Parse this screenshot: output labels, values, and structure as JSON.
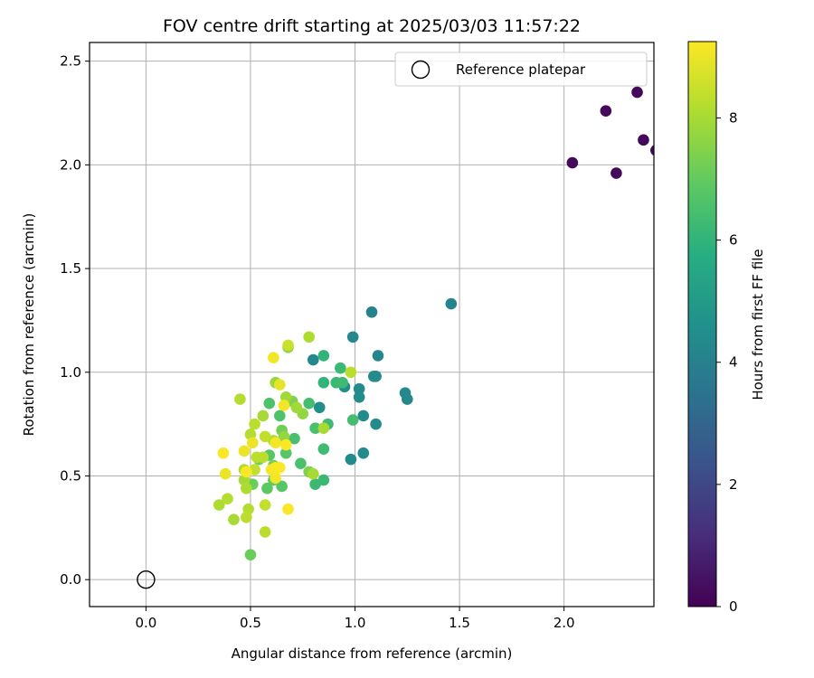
{
  "chart_data": {
    "type": "scatter",
    "title": "FOV centre drift starting at 2025/03/03 11:57:22",
    "xlabel": "Angular distance from reference (arcmin)",
    "ylabel": "Rotation from reference (arcmin)",
    "xlim": [
      -0.27,
      2.43
    ],
    "ylim": [
      -0.13,
      2.59
    ],
    "xticks": [
      "0.0",
      "0.5",
      "1.0",
      "1.5",
      "2.0"
    ],
    "yticks": [
      "0.0",
      "0.5",
      "1.0",
      "1.5",
      "2.0",
      "2.5"
    ],
    "grid": true,
    "legend": {
      "position": "top-right",
      "entries": [
        "Reference platepar"
      ]
    },
    "reference_point": {
      "x": 0.0,
      "y": 0.0
    },
    "colorbar": {
      "label": "Hours from first FF file",
      "colormap": "viridis",
      "range": [
        0,
        9.25
      ],
      "ticks": [
        "0",
        "2",
        "4",
        "6",
        "8"
      ]
    },
    "points": [
      {
        "x": 2.04,
        "y": 2.01,
        "c": 0.2
      },
      {
        "x": 2.2,
        "y": 2.26,
        "c": 0.2
      },
      {
        "x": 2.35,
        "y": 2.35,
        "c": 0.2
      },
      {
        "x": 2.25,
        "y": 1.96,
        "c": 0.2
      },
      {
        "x": 2.38,
        "y": 2.12,
        "c": 0.2
      },
      {
        "x": 2.44,
        "y": 2.07,
        "c": 0.2
      },
      {
        "x": 1.46,
        "y": 1.33,
        "c": 4.1
      },
      {
        "x": 1.08,
        "y": 1.29,
        "c": 4.1
      },
      {
        "x": 0.99,
        "y": 1.17,
        "c": 4.3
      },
      {
        "x": 1.11,
        "y": 1.08,
        "c": 4.2
      },
      {
        "x": 0.8,
        "y": 1.06,
        "c": 4.3
      },
      {
        "x": 1.09,
        "y": 0.98,
        "c": 4.3
      },
      {
        "x": 1.1,
        "y": 0.98,
        "c": 4.4
      },
      {
        "x": 0.95,
        "y": 0.93,
        "c": 4.5
      },
      {
        "x": 1.02,
        "y": 0.92,
        "c": 4.4
      },
      {
        "x": 1.24,
        "y": 0.9,
        "c": 4.3
      },
      {
        "x": 1.25,
        "y": 0.87,
        "c": 4.3
      },
      {
        "x": 1.02,
        "y": 0.88,
        "c": 4.5
      },
      {
        "x": 0.83,
        "y": 0.83,
        "c": 4.5
      },
      {
        "x": 1.04,
        "y": 0.79,
        "c": 4.4
      },
      {
        "x": 1.1,
        "y": 0.75,
        "c": 4.4
      },
      {
        "x": 1.04,
        "y": 0.61,
        "c": 4.4
      },
      {
        "x": 0.98,
        "y": 0.58,
        "c": 4.4
      },
      {
        "x": 0.85,
        "y": 1.08,
        "c": 6.0
      },
      {
        "x": 0.93,
        "y": 1.02,
        "c": 6.2
      },
      {
        "x": 0.85,
        "y": 0.95,
        "c": 6.0
      },
      {
        "x": 0.91,
        "y": 0.95,
        "c": 6.2
      },
      {
        "x": 0.94,
        "y": 0.95,
        "c": 6.3
      },
      {
        "x": 0.78,
        "y": 0.85,
        "c": 6.4
      },
      {
        "x": 0.99,
        "y": 0.77,
        "c": 6.4
      },
      {
        "x": 0.81,
        "y": 0.73,
        "c": 6.5
      },
      {
        "x": 0.87,
        "y": 0.75,
        "c": 6.3
      },
      {
        "x": 0.85,
        "y": 0.63,
        "c": 6.3
      },
      {
        "x": 0.74,
        "y": 0.56,
        "c": 6.5
      },
      {
        "x": 0.81,
        "y": 0.46,
        "c": 6.2
      },
      {
        "x": 0.85,
        "y": 0.48,
        "c": 6.2
      },
      {
        "x": 0.71,
        "y": 0.68,
        "c": 6.5
      },
      {
        "x": 0.59,
        "y": 0.85,
        "c": 6.6
      },
      {
        "x": 0.64,
        "y": 0.79,
        "c": 6.6
      },
      {
        "x": 0.67,
        "y": 0.61,
        "c": 6.8
      },
      {
        "x": 0.59,
        "y": 0.6,
        "c": 6.8
      },
      {
        "x": 0.58,
        "y": 0.44,
        "c": 6.9
      },
      {
        "x": 0.65,
        "y": 0.45,
        "c": 6.8
      },
      {
        "x": 0.61,
        "y": 0.48,
        "c": 7.0
      },
      {
        "x": 0.51,
        "y": 0.46,
        "c": 7.1
      },
      {
        "x": 0.5,
        "y": 0.12,
        "c": 7.1
      },
      {
        "x": 0.54,
        "y": 0.58,
        "c": 7.2
      },
      {
        "x": 0.61,
        "y": 0.55,
        "c": 7.3
      },
      {
        "x": 0.65,
        "y": 0.72,
        "c": 7.2
      },
      {
        "x": 0.7,
        "y": 0.86,
        "c": 7.4
      },
      {
        "x": 0.78,
        "y": 0.52,
        "c": 7.4
      },
      {
        "x": 0.68,
        "y": 1.12,
        "c": 7.6
      },
      {
        "x": 0.66,
        "y": 0.69,
        "c": 7.7
      },
      {
        "x": 0.75,
        "y": 0.8,
        "c": 7.7
      },
      {
        "x": 0.62,
        "y": 0.95,
        "c": 7.8
      },
      {
        "x": 0.72,
        "y": 0.83,
        "c": 7.9
      },
      {
        "x": 0.67,
        "y": 0.88,
        "c": 7.9
      },
      {
        "x": 0.85,
        "y": 0.73,
        "c": 8.0
      },
      {
        "x": 0.8,
        "y": 0.51,
        "c": 8.0
      },
      {
        "x": 0.78,
        "y": 1.17,
        "c": 8.1
      },
      {
        "x": 0.68,
        "y": 1.13,
        "c": 8.5
      },
      {
        "x": 0.98,
        "y": 1.0,
        "c": 8.3
      },
      {
        "x": 0.45,
        "y": 0.87,
        "c": 8.2
      },
      {
        "x": 0.56,
        "y": 0.79,
        "c": 8.0
      },
      {
        "x": 0.52,
        "y": 0.75,
        "c": 8.3
      },
      {
        "x": 0.61,
        "y": 0.67,
        "c": 8.1
      },
      {
        "x": 0.5,
        "y": 0.7,
        "c": 8.2
      },
      {
        "x": 0.57,
        "y": 0.69,
        "c": 8.4
      },
      {
        "x": 0.53,
        "y": 0.59,
        "c": 8.3
      },
      {
        "x": 0.56,
        "y": 0.59,
        "c": 8.3
      },
      {
        "x": 0.47,
        "y": 0.53,
        "c": 8.1
      },
      {
        "x": 0.52,
        "y": 0.53,
        "c": 8.4
      },
      {
        "x": 0.47,
        "y": 0.48,
        "c": 8.0
      },
      {
        "x": 0.48,
        "y": 0.44,
        "c": 8.1
      },
      {
        "x": 0.39,
        "y": 0.39,
        "c": 8.2
      },
      {
        "x": 0.35,
        "y": 0.36,
        "c": 8.1
      },
      {
        "x": 0.42,
        "y": 0.29,
        "c": 8.0
      },
      {
        "x": 0.48,
        "y": 0.3,
        "c": 8.3
      },
      {
        "x": 0.49,
        "y": 0.34,
        "c": 8.2
      },
      {
        "x": 0.57,
        "y": 0.23,
        "c": 8.3
      },
      {
        "x": 0.57,
        "y": 0.36,
        "c": 8.4
      },
      {
        "x": 0.64,
        "y": 0.94,
        "c": 8.9
      },
      {
        "x": 0.61,
        "y": 1.07,
        "c": 9.1
      },
      {
        "x": 0.66,
        "y": 0.84,
        "c": 9.1
      },
      {
        "x": 0.51,
        "y": 0.66,
        "c": 9.0
      },
      {
        "x": 0.47,
        "y": 0.62,
        "c": 9.0
      },
      {
        "x": 0.37,
        "y": 0.61,
        "c": 9.2
      },
      {
        "x": 0.67,
        "y": 0.65,
        "c": 9.2
      },
      {
        "x": 0.62,
        "y": 0.66,
        "c": 9.1
      },
      {
        "x": 0.38,
        "y": 0.51,
        "c": 9.0
      },
      {
        "x": 0.48,
        "y": 0.52,
        "c": 9.2
      },
      {
        "x": 0.6,
        "y": 0.53,
        "c": 9.1
      },
      {
        "x": 0.62,
        "y": 0.54,
        "c": 9.2
      },
      {
        "x": 0.64,
        "y": 0.54,
        "c": 9.2
      },
      {
        "x": 0.68,
        "y": 0.34,
        "c": 9.2
      },
      {
        "x": 0.62,
        "y": 0.49,
        "c": 9.1
      }
    ]
  }
}
